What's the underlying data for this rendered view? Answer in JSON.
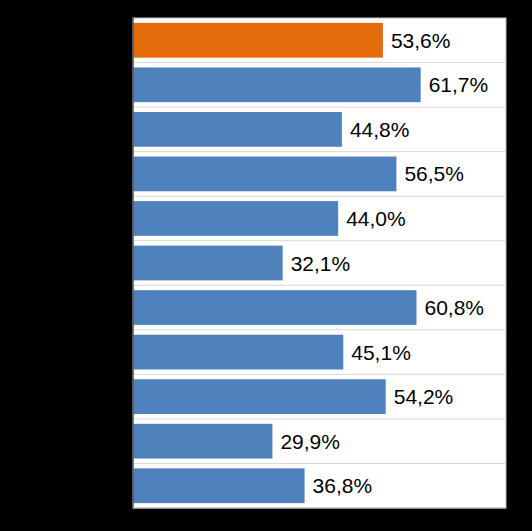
{
  "chart_data": {
    "type": "bar",
    "orientation": "horizontal",
    "categories": [
      null,
      null,
      null,
      null,
      null,
      null,
      null,
      null,
      null,
      null,
      null
    ],
    "values": [
      53.6,
      61.7,
      44.8,
      56.5,
      44.0,
      32.1,
      60.8,
      45.1,
      54.2,
      29.9,
      36.8
    ],
    "value_labels": [
      "53,6%",
      "61,7%",
      "44,8%",
      "56,5%",
      "44,0%",
      "32,1%",
      "60,8%",
      "45,1%",
      "54,2%",
      "29,9%",
      "36,8%"
    ],
    "colors": [
      "#e46c0a",
      "#4f81bd",
      "#4f81bd",
      "#4f81bd",
      "#4f81bd",
      "#4f81bd",
      "#4f81bd",
      "#4f81bd",
      "#4f81bd",
      "#4f81bd",
      "#4f81bd"
    ],
    "xlim": [
      0,
      80
    ],
    "grid": true,
    "data_labels": true,
    "tick_labels": false
  }
}
